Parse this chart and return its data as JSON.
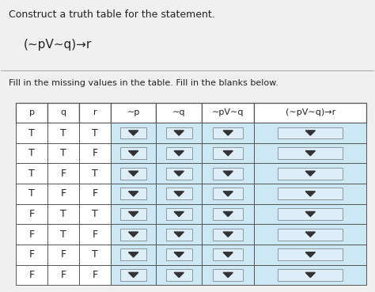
{
  "title_line1": "Construct a truth table for the statement.",
  "title_line2": "(∼pV∼q)→r",
  "subtitle": "Fill in the missing values in the table. Fill in the blanks below.",
  "col_headers": [
    "p",
    "q",
    "r",
    "∼p",
    "∼q",
    "∼pV∼q",
    "(∼pV∼q)→r"
  ],
  "rows": [
    [
      "T",
      "T",
      "T"
    ],
    [
      "T",
      "T",
      "F"
    ],
    [
      "T",
      "F",
      "T"
    ],
    [
      "T",
      "F",
      "F"
    ],
    [
      "F",
      "T",
      "T"
    ],
    [
      "F",
      "T",
      "F"
    ],
    [
      "F",
      "F",
      "T"
    ],
    [
      "F",
      "F",
      "F"
    ]
  ],
  "text_color": "#222222",
  "border_color": "#555555",
  "dropdown_color": "#333333",
  "bg_right": "#cde8f5",
  "title_font_size": 9,
  "formula_font_size": 11,
  "subtitle_font_size": 8,
  "cell_font_size": 9,
  "header_font_size": 8
}
